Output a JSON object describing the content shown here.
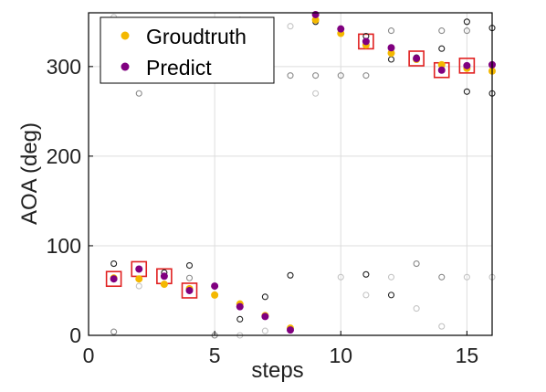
{
  "chart_data": {
    "type": "scatter",
    "title": "",
    "xlabel": "steps",
    "ylabel": "AOA (deg)",
    "xlim": [
      0,
      16
    ],
    "ylim": [
      0,
      360
    ],
    "xticks": [
      0,
      5,
      10,
      15
    ],
    "yticks": [
      0,
      100,
      200,
      300
    ],
    "grid": true,
    "legend_position": "top-left",
    "series": [
      {
        "name": "Groudtruth",
        "color": "#f4b800",
        "marker": "filled-circle",
        "points": [
          [
            1,
            64
          ],
          [
            2,
            63
          ],
          [
            3,
            57
          ],
          [
            4,
            52
          ],
          [
            5,
            45
          ],
          [
            6,
            35
          ],
          [
            7,
            22
          ],
          [
            8,
            8
          ],
          [
            9,
            352
          ],
          [
            10,
            337
          ],
          [
            11,
            324
          ],
          [
            12,
            315
          ],
          [
            13,
            308
          ],
          [
            14,
            302
          ],
          [
            15,
            298
          ],
          [
            16,
            295
          ]
        ]
      },
      {
        "name": "Predict",
        "color": "#800080",
        "marker": "filled-circle",
        "points": [
          [
            1,
            63
          ],
          [
            2,
            74
          ],
          [
            3,
            66
          ],
          [
            4,
            50
          ],
          [
            5,
            55
          ],
          [
            6,
            32
          ],
          [
            7,
            21
          ],
          [
            8,
            6
          ],
          [
            9,
            358
          ],
          [
            10,
            342
          ],
          [
            11,
            328
          ],
          [
            12,
            321
          ],
          [
            13,
            309
          ],
          [
            14,
            296
          ],
          [
            15,
            301
          ],
          [
            16,
            302
          ]
        ]
      }
    ],
    "highlighted_steps": [
      1,
      2,
      3,
      4,
      11,
      13,
      14,
      15
    ],
    "candidates_dark": [
      [
        1,
        80
      ],
      [
        3,
        70
      ],
      [
        4,
        78
      ],
      [
        6,
        18
      ],
      [
        7,
        43
      ],
      [
        8,
        67
      ],
      [
        9,
        350
      ],
      [
        10,
        342
      ],
      [
        11,
        334
      ],
      [
        11,
        68
      ],
      [
        12,
        308
      ],
      [
        12,
        45
      ],
      [
        13,
        310
      ],
      [
        14,
        320
      ],
      [
        15,
        350
      ],
      [
        15,
        272
      ],
      [
        16,
        343
      ],
      [
        16,
        270
      ]
    ],
    "candidates_mid": [
      [
        1,
        4
      ],
      [
        2,
        270
      ],
      [
        4,
        64
      ],
      [
        5,
        0
      ],
      [
        6,
        352
      ],
      [
        8,
        290
      ],
      [
        9,
        290
      ],
      [
        10,
        290
      ],
      [
        11,
        290
      ],
      [
        12,
        340
      ],
      [
        13,
        80
      ],
      [
        14,
        340
      ],
      [
        14,
        65
      ],
      [
        15,
        340
      ]
    ],
    "candidates_light": [
      [
        1,
        355
      ],
      [
        2,
        55
      ],
      [
        6,
        0
      ],
      [
        7,
        5
      ],
      [
        8,
        345
      ],
      [
        9,
        270
      ],
      [
        10,
        65
      ],
      [
        11,
        45
      ],
      [
        12,
        65
      ],
      [
        13,
        30
      ],
      [
        14,
        10
      ],
      [
        15,
        65
      ],
      [
        16,
        65
      ]
    ],
    "colors": {
      "highlight_box": "#e02020",
      "grid": "#dddddd",
      "axis": "#000000",
      "candidate_dark": "#222222",
      "candidate_mid": "#8a8a8a",
      "candidate_light": "#c4c4c4"
    }
  }
}
